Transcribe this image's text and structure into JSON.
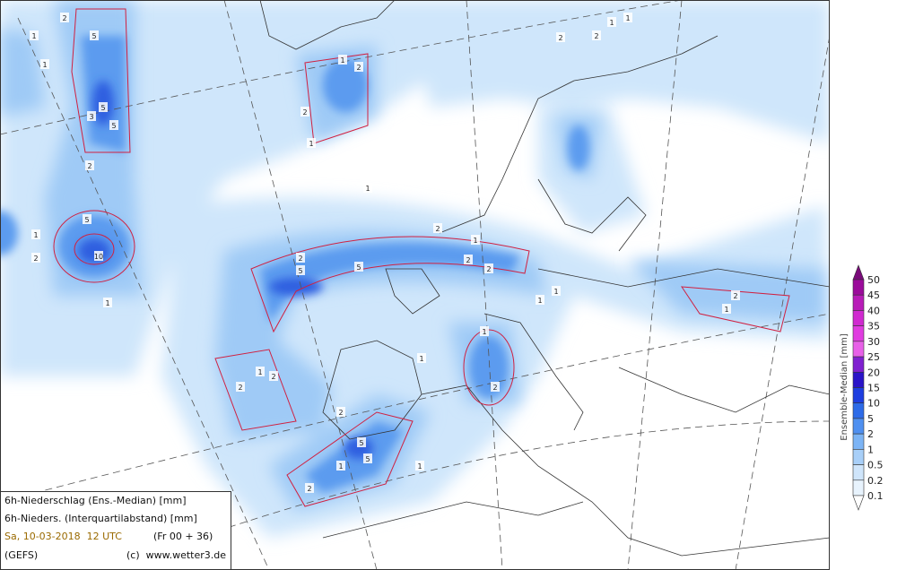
{
  "info": {
    "line1": "6h-Niederschlag (Ens.-Median) [mm]",
    "line2": "6h-Nieders. (Interquartilabstand) [mm]",
    "date": "Sa, 10-03-2018  12 UTC",
    "run": "(Fr 00 + 36)",
    "model": "(GEFS)",
    "copyright": "(c)  www.wetter3.de"
  },
  "colorbar": {
    "title": "Ensemble-Median [mm]",
    "labels": [
      "50",
      "45",
      "40",
      "35",
      "30",
      "25",
      "20",
      "15",
      "10",
      "5",
      "2",
      "1",
      "0.5",
      "0.2",
      "0.1"
    ]
  },
  "map": {
    "contour_labels": [
      "2",
      "1",
      "5",
      "5",
      "5",
      "3",
      "1",
      "2",
      "5",
      "10",
      "1",
      "2",
      "1",
      "2",
      "1",
      "2",
      "1",
      "5",
      "2",
      "5",
      "2",
      "2",
      "2",
      "1",
      "1",
      "1",
      "2",
      "1",
      "2",
      "1",
      "2",
      "1",
      "5",
      "5",
      "1",
      "2",
      "1",
      "2",
      "1",
      "2",
      "2",
      "1",
      "1",
      "2",
      "1"
    ]
  }
}
